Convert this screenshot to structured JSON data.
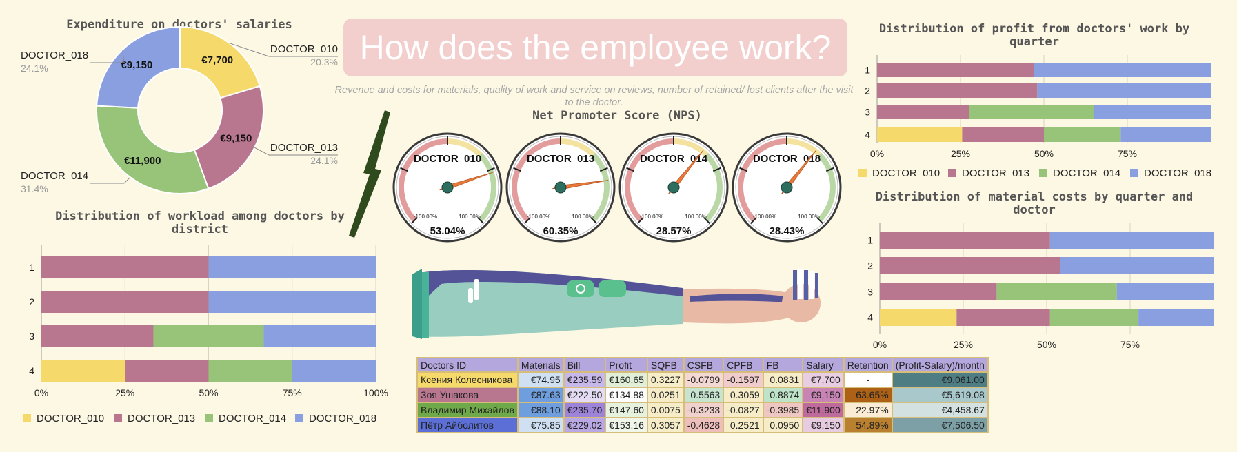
{
  "header": {
    "title": "How does the employee work?",
    "subtitle": "Revenue and costs for materials, quality of work and service on reviews, number of retained/ lost clients after the visit to the doctor."
  },
  "colors": {
    "DOCTOR_010": "#f6d96b",
    "DOCTOR_013": "#b8778f",
    "DOCTOR_014": "#98c47a",
    "DOCTOR_018": "#8a9fe0"
  },
  "chart_data": [
    {
      "type": "pie",
      "title": "Expenditure on doctors' salaries",
      "slices": [
        {
          "label": "DOCTOR_010",
          "value": 7700,
          "value_label": "€7,700",
          "percent": "20.3%"
        },
        {
          "label": "DOCTOR_013",
          "value": 9150,
          "value_label": "€9,150",
          "percent": "24.1%"
        },
        {
          "label": "DOCTOR_014",
          "value": 11900,
          "value_label": "€11,900",
          "percent": "31.4%"
        },
        {
          "label": "DOCTOR_018",
          "value": 9150,
          "value_label": "€9,150",
          "percent": "24.1%"
        }
      ]
    },
    {
      "type": "bar",
      "stacked": "percent",
      "title": "Distribution of workload among doctors by district",
      "categories": [
        "1",
        "2",
        "3",
        "4"
      ],
      "xticks": [
        "0%",
        "25%",
        "50%",
        "75%",
        "100%"
      ],
      "series": [
        {
          "name": "DOCTOR_010",
          "values": [
            0,
            0,
            0,
            25
          ]
        },
        {
          "name": "DOCTOR_013",
          "values": [
            50,
            50,
            33.5,
            25
          ]
        },
        {
          "name": "DOCTOR_014",
          "values": [
            0,
            0,
            33,
            25
          ]
        },
        {
          "name": "DOCTOR_018",
          "values": [
            50,
            50,
            33.5,
            25
          ]
        }
      ],
      "legend": "bottom"
    },
    {
      "type": "gauge",
      "title": "Net Promoter Score (NPS)",
      "min_label": "-100.00%",
      "max_label": "100.00%",
      "gauges": [
        {
          "name": "DOCTOR_010",
          "value": 53.04,
          "value_label": "53.04%"
        },
        {
          "name": "DOCTOR_013",
          "value": 60.35,
          "value_label": "60.35%"
        },
        {
          "name": "DOCTOR_014",
          "value": 28.57,
          "value_label": "28.57%"
        },
        {
          "name": "DOCTOR_018",
          "value": 28.43,
          "value_label": "28.43%"
        }
      ]
    },
    {
      "type": "bar",
      "stacked": "percent",
      "title": "Distribution of profit from doctors' work by quarter",
      "categories": [
        "1",
        "2",
        "3",
        "4"
      ],
      "xticks": [
        "0%",
        "25%",
        "50%",
        "75%"
      ],
      "series": [
        {
          "name": "DOCTOR_010",
          "values": [
            0,
            0,
            0,
            25.5
          ]
        },
        {
          "name": "DOCTOR_013",
          "values": [
            47,
            48,
            27.5,
            24.5
          ]
        },
        {
          "name": "DOCTOR_014",
          "values": [
            0,
            0,
            37.5,
            23
          ]
        },
        {
          "name": "DOCTOR_018",
          "values": [
            53,
            52,
            35,
            27
          ]
        }
      ],
      "legend": "bottom"
    },
    {
      "type": "bar",
      "stacked": "percent",
      "title": "Distribution of material costs by quarter and doctor",
      "categories": [
        "1",
        "2",
        "3",
        "4"
      ],
      "xticks": [
        "0%",
        "25%",
        "50%",
        "75%"
      ],
      "series": [
        {
          "name": "DOCTOR_010",
          "values": [
            0,
            0,
            0,
            23
          ]
        },
        {
          "name": "DOCTOR_013",
          "values": [
            51,
            54,
            35,
            28
          ]
        },
        {
          "name": "DOCTOR_014",
          "values": [
            0,
            0,
            36,
            26.5
          ]
        },
        {
          "name": "DOCTOR_018",
          "values": [
            49,
            46,
            29,
            22.5
          ]
        }
      ]
    },
    {
      "type": "table",
      "columns": [
        "Doctors ID",
        "Materials",
        "Bill",
        "Profit",
        "SQFB",
        "CSFB",
        "CPFB",
        "FB",
        "Salary",
        "Retention",
        "(Profit-Salary)/month"
      ],
      "rows": [
        [
          "Ксения Колесникова",
          "€74.95",
          "€235.59",
          "€160.65",
          "0.3227",
          "-0.0799",
          "-0.1597",
          "0.0831",
          "€7,700",
          "-",
          "€9,061.00"
        ],
        [
          "Зоя Ушакова",
          "€87.63",
          "€222.50",
          "€134.88",
          "0.0251",
          "0.5563",
          "0.3059",
          "0.8874",
          "€9,150",
          "63.65%",
          "€5,619.08"
        ],
        [
          "Владимир Михайлов",
          "€88.10",
          "€235.70",
          "€147.60",
          "0.0075",
          "-0.3233",
          "-0.0827",
          "-0.3985",
          "€11,900",
          "22.97%",
          "€4,458.67"
        ],
        [
          "Пётр Айболитов",
          "€75.85",
          "€229.02",
          "€153.16",
          "0.3057",
          "-0.4628",
          "0.2521",
          "0.0950",
          "€9,150",
          "54.89%",
          "€7,506.50"
        ]
      ],
      "name_colors": [
        "#f6d96b",
        "#b8778f",
        "#6fa94a",
        "#5b6fd6"
      ],
      "cell_colors": [
        [
          "#cfe0f3",
          "#c6b8ea",
          "#e1efd8",
          "#f6edc8",
          "#f3d8d4",
          "#f1cccc",
          "#f6edc8",
          "#e8cde3",
          "#ffffff",
          "#4e7d84"
        ],
        [
          "#6e9ede",
          "#e3dcf3",
          "#fdfdfd",
          "#f6edc8",
          "#c7e4cf",
          "#f6edc8",
          "#bfe3c9",
          "#c784b4",
          "#ad6116",
          "#a8c8cc"
        ],
        [
          "#6e9ede",
          "#9e84d9",
          "#e6f1de",
          "#f6edc8",
          "#f1d1cd",
          "#f6edc8",
          "#efc7c2",
          "#be6a9d",
          "#fbedd5",
          "#d4e1e1"
        ],
        [
          "#cfe0f3",
          "#b9a8e4",
          "#f0f6ea",
          "#f6edc8",
          "#eebebb",
          "#f6edc8",
          "#f6edc8",
          "#e6cbe1",
          "#b9802f",
          "#7ca0a6"
        ]
      ]
    }
  ]
}
